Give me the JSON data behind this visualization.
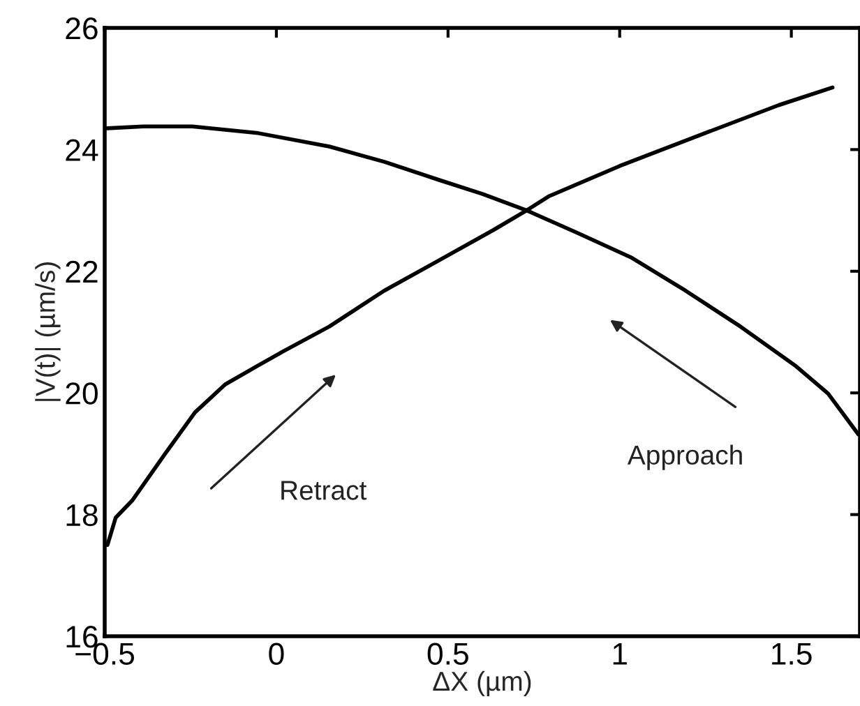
{
  "chart_data": {
    "type": "line",
    "xlabel": "ΔX (µm)",
    "ylabel": "|V(t)| (µm/s)",
    "xlim": [
      -0.5,
      1.7
    ],
    "xticks": [
      {
        "value": -0.5,
        "label": "−0.5"
      },
      0,
      0.5,
      1,
      1.5
    ],
    "ylim": [
      16,
      26
    ],
    "yticks": [
      16,
      18,
      20,
      22,
      24,
      26
    ],
    "grid": false,
    "legend": false,
    "series": [
      {
        "color": "#000000",
        "x": [
          -0.492,
          -0.468,
          -0.42,
          -0.324,
          -0.237,
          -0.149,
          -0.053,
          0.019,
          0.154,
          0.314,
          0.474,
          0.633,
          0.729,
          0.793,
          1.0,
          1.272,
          1.463,
          1.62
        ],
        "values": [
          17.5,
          17.95,
          18.23,
          19.0,
          19.68,
          20.14,
          20.45,
          20.68,
          21.09,
          21.68,
          22.18,
          22.68,
          23.0,
          23.23,
          23.73,
          24.32,
          24.73,
          25.02
        ]
      },
      {
        "color": "#000000",
        "x": [
          -0.492,
          -0.388,
          -0.245,
          -0.053,
          0.154,
          0.314,
          0.474,
          0.601,
          0.729,
          0.873,
          1.032,
          1.192,
          1.352,
          1.511,
          1.607,
          1.695
        ],
        "values": [
          24.35,
          24.38,
          24.38,
          24.27,
          24.05,
          23.8,
          23.5,
          23.27,
          23.0,
          22.64,
          22.23,
          21.68,
          21.09,
          20.45,
          19.99,
          19.32
        ]
      }
    ],
    "annotations": [
      "Retract",
      "Approach"
    ]
  }
}
